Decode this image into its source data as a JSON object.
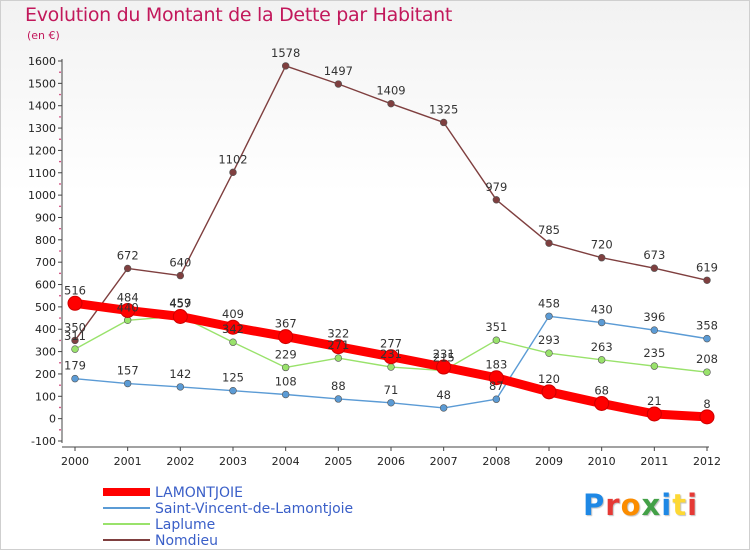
{
  "chart_data": {
    "type": "line",
    "title": "Evolution du Montant de la Dette par Habitant",
    "subtitle": "(en €)",
    "x": [
      "2000",
      "2001",
      "2002",
      "2003",
      "2004",
      "2005",
      "2006",
      "2007",
      "2008",
      "2009",
      "2010",
      "2011",
      "2012"
    ],
    "y_ticks": [
      -100,
      0,
      100,
      200,
      300,
      400,
      500,
      600,
      700,
      800,
      900,
      1000,
      1100,
      1200,
      1300,
      1400,
      1500,
      1600
    ],
    "ylim": [
      -100,
      1600
    ],
    "grid": false,
    "legend_position": "bottom-left",
    "series": [
      {
        "name": "LAMONTJOIE",
        "color": "#ff0000",
        "values": [
          516,
          484,
          457,
          409,
          367,
          322,
          277,
          231,
          183,
          120,
          68,
          21,
          8
        ]
      },
      {
        "name": "Saint-Vincent-de-Lamontjoie",
        "color": "#5b9bd5",
        "values": [
          179,
          157,
          142,
          125,
          108,
          88,
          71,
          48,
          87,
          458,
          430,
          396,
          358
        ]
      },
      {
        "name": "Laplume",
        "color": "#99e26b",
        "values": [
          311,
          440,
          459,
          342,
          229,
          271,
          231,
          215,
          351,
          293,
          263,
          235,
          208
        ]
      },
      {
        "name": "Nomdieu",
        "color": "#7f3f3f",
        "values": [
          350,
          672,
          640,
          1102,
          1578,
          1497,
          1409,
          1325,
          979,
          785,
          720,
          673,
          619
        ]
      }
    ]
  },
  "logo": {
    "letters": [
      "P",
      "r",
      "o",
      "x",
      "i",
      "t",
      "i"
    ],
    "colors": [
      "#1e88e5",
      "#e53935",
      "#fb8c00",
      "#43a047",
      "#1e88e5",
      "#fdd835",
      "#e53935"
    ]
  }
}
